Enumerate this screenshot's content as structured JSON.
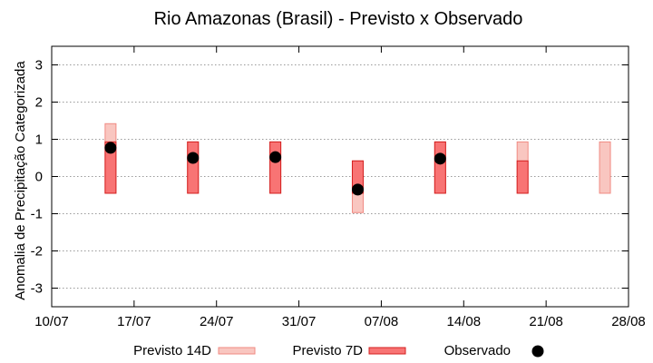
{
  "chart_data": {
    "type": "range-bar",
    "title": "Rio Amazonas (Brasil) - Previsto x Observado",
    "xlabel": "",
    "ylabel": "Anomalia de Precipitação Categorizada",
    "x_start_day": 0,
    "x_end_day": 49,
    "x_ticks": [
      {
        "day": 0,
        "label": "10/07"
      },
      {
        "day": 7,
        "label": "17/07"
      },
      {
        "day": 14,
        "label": "24/07"
      },
      {
        "day": 21,
        "label": "31/07"
      },
      {
        "day": 28,
        "label": "07/08"
      },
      {
        "day": 35,
        "label": "14/08"
      },
      {
        "day": 42,
        "label": "21/08"
      },
      {
        "day": 49,
        "label": "28/08"
      }
    ],
    "ylim": [
      -3.5,
      3.5
    ],
    "y_ticks": [
      {
        "value": 3,
        "label": "3"
      },
      {
        "value": 2,
        "label": "2"
      },
      {
        "value": 1,
        "label": "1"
      },
      {
        "value": 0,
        "label": "0"
      },
      {
        "value": -1,
        "label": "-1"
      },
      {
        "value": -2,
        "label": "-2"
      },
      {
        "value": -3,
        "label": "-3"
      }
    ],
    "grid": true,
    "legend_position": "bottom",
    "series": [
      {
        "name": "Previsto 14D",
        "kind": "range",
        "fill": "#f9c6c0",
        "stroke": "#f08a82",
        "items": [
          {
            "day": 5,
            "low": -0.45,
            "high": 1.42
          },
          {
            "day": 12,
            "low": -0.45,
            "high": 0.93
          },
          {
            "day": 19,
            "low": -0.45,
            "high": 0.93
          },
          {
            "day": 26,
            "low": -0.97,
            "high": 0.42
          },
          {
            "day": 33,
            "low": -0.45,
            "high": 0.93
          },
          {
            "day": 40,
            "low": -0.45,
            "high": 0.93
          },
          {
            "day": 47,
            "low": -0.45,
            "high": 0.93
          }
        ]
      },
      {
        "name": "Previsto 7D",
        "kind": "range",
        "fill": "#f87474",
        "stroke": "#d42020",
        "items": [
          {
            "day": 5,
            "low": -0.45,
            "high": 0.93
          },
          {
            "day": 12,
            "low": -0.45,
            "high": 0.93
          },
          {
            "day": 19,
            "low": -0.45,
            "high": 0.93
          },
          {
            "day": 26,
            "low": -0.45,
            "high": 0.42
          },
          {
            "day": 33,
            "low": -0.45,
            "high": 0.93
          },
          {
            "day": 40,
            "low": -0.45,
            "high": 0.42
          }
        ]
      },
      {
        "name": "Observado",
        "kind": "point",
        "color": "#000000",
        "items": [
          {
            "day": 5,
            "value": 0.77
          },
          {
            "day": 12,
            "value": 0.5
          },
          {
            "day": 19,
            "value": 0.52
          },
          {
            "day": 26,
            "value": -0.35
          },
          {
            "day": 33,
            "value": 0.48
          }
        ]
      }
    ]
  }
}
